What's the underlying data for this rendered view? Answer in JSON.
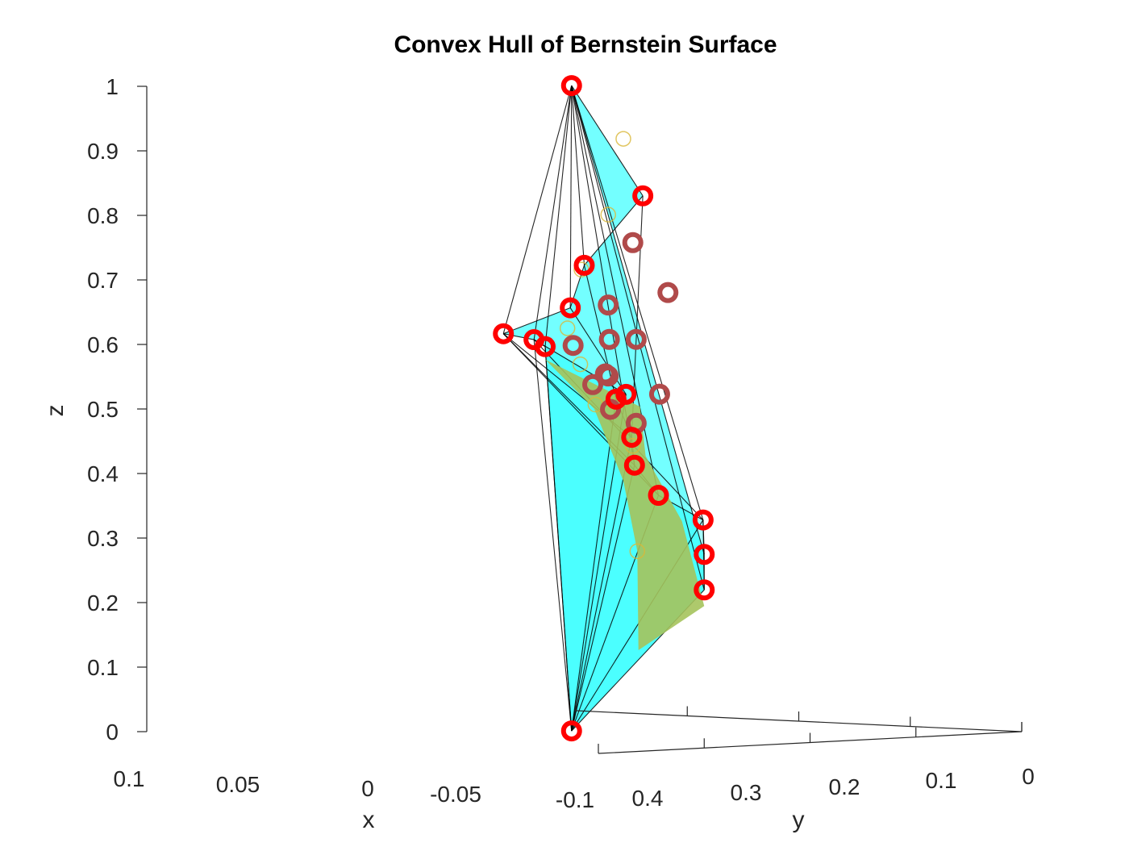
{
  "chart_data": {
    "type": "scatter",
    "projection": "3d",
    "title": "Convex Hull of Bernstein Surface",
    "xlabel": "x",
    "ylabel": "y",
    "zlabel": "z",
    "xlim": [
      -0.1,
      0.1
    ],
    "ylim": [
      0,
      0.4
    ],
    "zlim": [
      0,
      1
    ],
    "x_ticks": [
      "0.1",
      "0.05",
      "0",
      "-0.05",
      "-0.1"
    ],
    "y_ticks": [
      "0.4",
      "0.3",
      "0.2",
      "0.1",
      "0"
    ],
    "z_ticks": [
      "0",
      "0.1",
      "0.2",
      "0.3",
      "0.4",
      "0.5",
      "0.6",
      "0.7",
      "0.8",
      "0.9",
      "1"
    ],
    "grid": false,
    "legend": "none",
    "colors": {
      "hull_fill": "#00ffff",
      "hull_edges": "#000000",
      "control_points_front": "#ff0000",
      "control_points_back": "#b04a4a",
      "surface_points": "#d9b83a",
      "surface_fill": "#a5c35c"
    },
    "series": [
      {
        "kind": "hull-vertices",
        "marker": "circle",
        "points": [
          [
            -0.05,
            0.32,
            1.02
          ],
          [
            0.095,
            0.05,
            0.58
          ],
          [
            0.09,
            0.05,
            0.57
          ],
          [
            0.085,
            0.1,
            0.595
          ],
          [
            0.055,
            0.1,
            0.64
          ],
          [
            0.025,
            0.15,
            0.715
          ],
          [
            -0.025,
            0.2,
            0.835
          ],
          [
            0.03,
            0.1,
            0.51
          ],
          [
            0.025,
            0.12,
            0.505
          ],
          [
            -0.02,
            0.2,
            0.46
          ],
          [
            -0.045,
            0.25,
            0.425
          ],
          [
            -0.07,
            0.28,
            0.385
          ],
          [
            -0.09,
            0.28,
            0.35
          ],
          [
            -0.1,
            0.3,
            0.3
          ],
          [
            -0.1,
            0.3,
            0.245
          ],
          [
            -0.05,
            0.32,
            0.02
          ]
        ]
      },
      {
        "kind": "interior-control-points",
        "marker": "circle",
        "points": [
          [
            -0.03,
            0.22,
            0.765
          ],
          [
            -0.06,
            0.25,
            0.695
          ],
          [
            0.0,
            0.18,
            0.66
          ],
          [
            0.03,
            0.15,
            0.59
          ],
          [
            -0.01,
            0.2,
            0.61
          ],
          [
            -0.06,
            0.28,
            0.625
          ],
          [
            -0.05,
            0.3,
            0.555
          ],
          [
            0.0,
            0.18,
            0.55
          ],
          [
            0.025,
            0.13,
            0.545
          ],
          [
            -0.02,
            0.22,
            0.505
          ],
          [
            -0.06,
            0.28,
            0.495
          ],
          [
            -0.08,
            0.3,
            0.545
          ]
        ]
      },
      {
        "kind": "surface-samples",
        "marker": "circle",
        "points": [
          [
            0.08,
            0.05,
            0.6
          ],
          [
            0.05,
            0.1,
            0.7
          ],
          [
            0.0,
            0.18,
            0.8
          ],
          [
            -0.04,
            0.25,
            0.93
          ],
          [
            0.06,
            0.08,
            0.55
          ],
          [
            0.02,
            0.15,
            0.5
          ],
          [
            -0.03,
            0.22,
            0.45
          ],
          [
            -0.07,
            0.3,
            0.3
          ]
        ]
      }
    ]
  }
}
